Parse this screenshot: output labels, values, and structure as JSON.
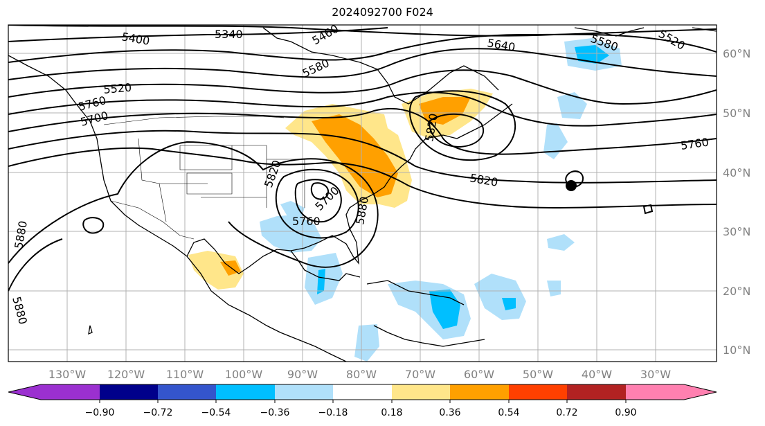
{
  "title": "2024092700 F024",
  "map": {
    "lon_labels": [
      "130°W",
      "120°W",
      "110°W",
      "100°W",
      "90°W",
      "80°W",
      "70°W",
      "60°W",
      "50°W",
      "40°W",
      "30°W"
    ],
    "lat_labels": [
      "60°N",
      "50°N",
      "40°N",
      "30°N",
      "20°N",
      "10°N"
    ],
    "contour_labels": [
      "5400",
      "5340",
      "5460",
      "5580",
      "5640",
      "5580",
      "5520",
      "5520",
      "5700",
      "5760",
      "5820",
      "5820",
      "5700",
      "5760",
      "5880",
      "5880",
      "5880",
      "5760",
      "5820"
    ],
    "colors": {
      "ocean": "#ffffff",
      "land_line": "#000000",
      "grid": "#b0b0b0",
      "tick_label": "#808080"
    }
  },
  "colorbar": {
    "labels": [
      "−0.90",
      "−0.72",
      "−0.54",
      "−0.36",
      "−0.18",
      "0.18",
      "0.36",
      "0.54",
      "0.72",
      "0.90"
    ],
    "colors": [
      "#9b30d0",
      "#00008b",
      "#3455cc",
      "#00bfff",
      "#b0e0fa",
      "#ffffff",
      "#ffe68a",
      "#ffa000",
      "#ff4000",
      "#b22222",
      "#ff80b0"
    ]
  }
}
